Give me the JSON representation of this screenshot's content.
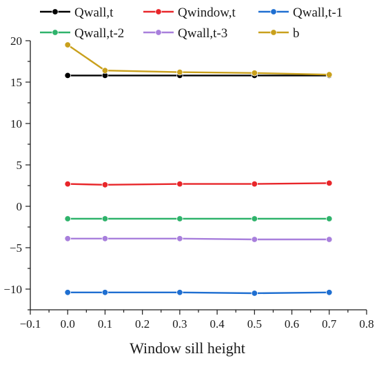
{
  "chart_data": {
    "type": "line",
    "title": "",
    "xlabel": "Window sill height",
    "ylabel": "",
    "xlim": [
      -0.1,
      0.8
    ],
    "ylim": [
      -12.5,
      20
    ],
    "xticks": [
      -0.1,
      0.0,
      0.1,
      0.2,
      0.3,
      0.4,
      0.5,
      0.6,
      0.7,
      0.8
    ],
    "xtick_labels": [
      "−0.1",
      "0.0",
      "0.1",
      "0.2",
      "0.3",
      "0.4",
      "0.5",
      "0.6",
      "0.7",
      "0.8"
    ],
    "yticks": [
      -10,
      -5,
      0,
      5,
      10,
      15,
      20
    ],
    "ytick_labels": [
      "−10",
      "−5",
      "0",
      "5",
      "10",
      "15",
      "20"
    ],
    "grid": false,
    "legend_position": "top",
    "x": [
      0.0,
      0.1,
      0.3,
      0.5,
      0.7
    ],
    "series": [
      {
        "name": "Qwall,t",
        "color": "#000000",
        "values": [
          15.8,
          15.8,
          15.8,
          15.8,
          15.8
        ]
      },
      {
        "name": "Qwindow,t",
        "color": "#e8262a",
        "values": [
          2.7,
          2.6,
          2.7,
          2.7,
          2.8
        ]
      },
      {
        "name": "Qwall,t-1",
        "color": "#1f6fd1",
        "values": [
          -10.4,
          -10.4,
          -10.4,
          -10.5,
          -10.4
        ]
      },
      {
        "name": "Qwall,t-2",
        "color": "#2fb36b",
        "values": [
          -1.5,
          -1.5,
          -1.5,
          -1.5,
          -1.5
        ]
      },
      {
        "name": "Qwall,t-3",
        "color": "#a87fdc",
        "values": [
          -3.9,
          -3.9,
          -3.9,
          -4.0,
          -4.0
        ]
      },
      {
        "name": "b",
        "color": "#c9a01c",
        "values": [
          19.5,
          16.4,
          16.2,
          16.1,
          15.9
        ]
      }
    ]
  }
}
